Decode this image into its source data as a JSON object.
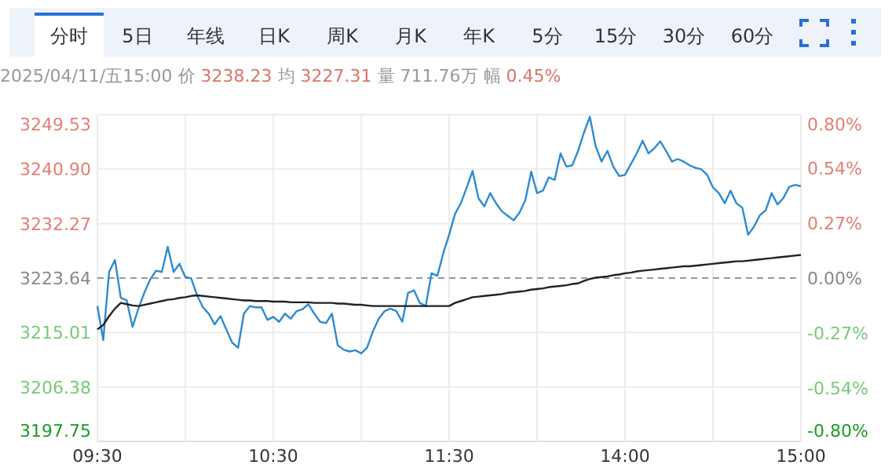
{
  "chart_data": {
    "type": "line",
    "subtitle": "2025/04/11/五15:00 价 3238.23 均 3227.31 量 711.76万 幅 0.45%",
    "annotations": [
      "分时",
      "5日",
      "年线",
      "日K",
      "周K",
      "月K",
      "年K",
      "5分",
      "15分",
      "30分",
      "60分"
    ],
    "categories": [
      "09:30",
      null,
      null,
      null,
      null,
      null,
      null,
      null,
      null,
      null,
      null,
      null,
      null,
      null,
      null,
      null,
      null,
      null,
      null,
      null,
      null,
      null,
      null,
      null,
      null,
      null,
      null,
      null,
      null,
      null,
      "10:30",
      null,
      null,
      null,
      null,
      null,
      null,
      null,
      null,
      null,
      null,
      null,
      null,
      null,
      null,
      null,
      null,
      null,
      null,
      null,
      null,
      null,
      null,
      null,
      null,
      null,
      null,
      null,
      null,
      null,
      "11:30",
      null,
      null,
      null,
      null,
      null,
      null,
      null,
      null,
      null,
      null,
      null,
      null,
      null,
      null,
      null,
      null,
      null,
      null,
      null,
      null,
      null,
      null,
      null,
      null,
      null,
      null,
      null,
      null,
      null,
      "14:00",
      null,
      null,
      null,
      null,
      null,
      null,
      null,
      null,
      null,
      null,
      null,
      null,
      null,
      null,
      null,
      null,
      null,
      null,
      null,
      null,
      null,
      null,
      null,
      null,
      null,
      null,
      null,
      null,
      null,
      "15:00"
    ],
    "series": [
      {
        "color": "#2e8bd0",
        "values": [
          3219.2,
          3213.8,
          3224.6,
          3226.5,
          3220.5,
          3220.1,
          3215.9,
          3218.8,
          3221.3,
          3223.4,
          3224.8,
          3224.6,
          3228.6,
          3224.6,
          3225.9,
          3223.8,
          3223.6,
          3220.9,
          3219.0,
          3218.0,
          3216.3,
          3217.6,
          3215.5,
          3213.4,
          3212.6,
          3218.0,
          3219.2,
          3219.0,
          3219.0,
          3217.0,
          3217.5,
          3216.7,
          3218.0,
          3217.2,
          3218.4,
          3218.7,
          3219.5,
          3218.0,
          3216.7,
          3216.5,
          3218.0,
          3213.0,
          3212.3,
          3212.0,
          3212.2,
          3211.7,
          3212.6,
          3215.2,
          3217.2,
          3218.4,
          3218.8,
          3218.4,
          3216.7,
          3221.3,
          3221.7,
          3219.7,
          3219.2,
          3224.4,
          3224.0,
          3227.6,
          3230.5,
          3233.8,
          3235.5,
          3238.0,
          3240.6,
          3236.3,
          3235.0,
          3237.1,
          3235.5,
          3234.2,
          3233.5,
          3232.8,
          3234.0,
          3236.0,
          3240.5,
          3237.1,
          3237.5,
          3239.6,
          3239.2,
          3243.4,
          3241.3,
          3241.5,
          3243.8,
          3246.7,
          3249.2,
          3244.5,
          3242.1,
          3243.8,
          3241.3,
          3239.8,
          3240.0,
          3241.7,
          3243.4,
          3245.4,
          3243.4,
          3244.2,
          3245.3,
          3243.8,
          3242.1,
          3242.5,
          3242.1,
          3241.5,
          3241.1,
          3240.9,
          3240.0,
          3238.0,
          3237.1,
          3235.5,
          3237.5,
          3235.5,
          3234.8,
          3230.5,
          3231.8,
          3233.6,
          3234.4,
          3237.1,
          3235.3,
          3236.3,
          3238.1,
          3238.4,
          3238.2
        ]
      },
      {
        "color": "#222222",
        "values": [
          3215.5,
          3216.2,
          3217.6,
          3218.8,
          3219.7,
          3219.5,
          3219.3,
          3219.2,
          3219.4,
          3219.6,
          3219.8,
          3220.0,
          3220.2,
          3220.3,
          3220.5,
          3220.6,
          3220.8,
          3220.9,
          3220.8,
          3220.7,
          3220.6,
          3220.5,
          3220.4,
          3220.3,
          3220.2,
          3220.1,
          3220.1,
          3220.0,
          3220.0,
          3220.0,
          3219.9,
          3219.9,
          3219.9,
          3219.8,
          3219.8,
          3219.8,
          3219.8,
          3219.7,
          3219.7,
          3219.7,
          3219.7,
          3219.6,
          3219.6,
          3219.5,
          3219.4,
          3219.4,
          3219.3,
          3219.2,
          3219.2,
          3219.2,
          3219.2,
          3219.2,
          3219.2,
          3219.2,
          3219.2,
          3219.2,
          3219.2,
          3219.2,
          3219.2,
          3219.2,
          3219.2,
          3219.7,
          3220.0,
          3220.3,
          3220.6,
          3220.7,
          3220.8,
          3220.9,
          3221.0,
          3221.1,
          3221.3,
          3221.4,
          3221.5,
          3221.6,
          3221.8,
          3221.9,
          3222.0,
          3222.2,
          3222.3,
          3222.4,
          3222.5,
          3222.7,
          3222.8,
          3223.2,
          3223.5,
          3223.7,
          3223.8,
          3223.9,
          3224.1,
          3224.2,
          3224.4,
          3224.5,
          3224.7,
          3224.8,
          3224.9,
          3225.0,
          3225.1,
          3225.2,
          3225.3,
          3225.4,
          3225.5,
          3225.5,
          3225.6,
          3225.7,
          3225.8,
          3225.9,
          3226.0,
          3226.1,
          3226.2,
          3226.3,
          3226.3,
          3226.4,
          3226.5,
          3226.6,
          3226.7,
          3226.8,
          3226.9,
          3227.0,
          3227.1,
          3227.2,
          3227.3
        ]
      }
    ],
    "ylim": [
      3197.75,
      3249.53
    ],
    "yticks": [
      {
        "value": 3197.75,
        "label": "3197.75"
      },
      {
        "value": 3206.38,
        "label": "3206.38"
      },
      {
        "value": 3215.01,
        "label": "3215.01"
      },
      {
        "value": 3223.64,
        "label": "3223.64"
      },
      {
        "value": 3232.27,
        "label": "3232.27"
      },
      {
        "value": 3240.9,
        "label": "3240.90"
      },
      {
        "value": 3249.53,
        "label": "3249.53"
      }
    ],
    "y2lim": [
      -0.8,
      0.8
    ],
    "y2ticks": [
      {
        "value": -0.8,
        "label": "-0.80%"
      },
      {
        "value": -0.54,
        "label": "-0.54%"
      },
      {
        "value": -0.27,
        "label": "-0.27%"
      },
      {
        "value": 0,
        "label": "0.00%"
      },
      {
        "value": 0.27,
        "label": "0.27%"
      },
      {
        "value": 0.54,
        "label": "0.54%"
      },
      {
        "value": 0.8,
        "label": "0.80%"
      }
    ],
    "ref_lines": [
      {
        "axis": "y",
        "value": 3223.64,
        "color": "#999999",
        "line_style": "dashed"
      }
    ],
    "grid": true,
    "line_style": "solid",
    "marker": "none"
  }
}
